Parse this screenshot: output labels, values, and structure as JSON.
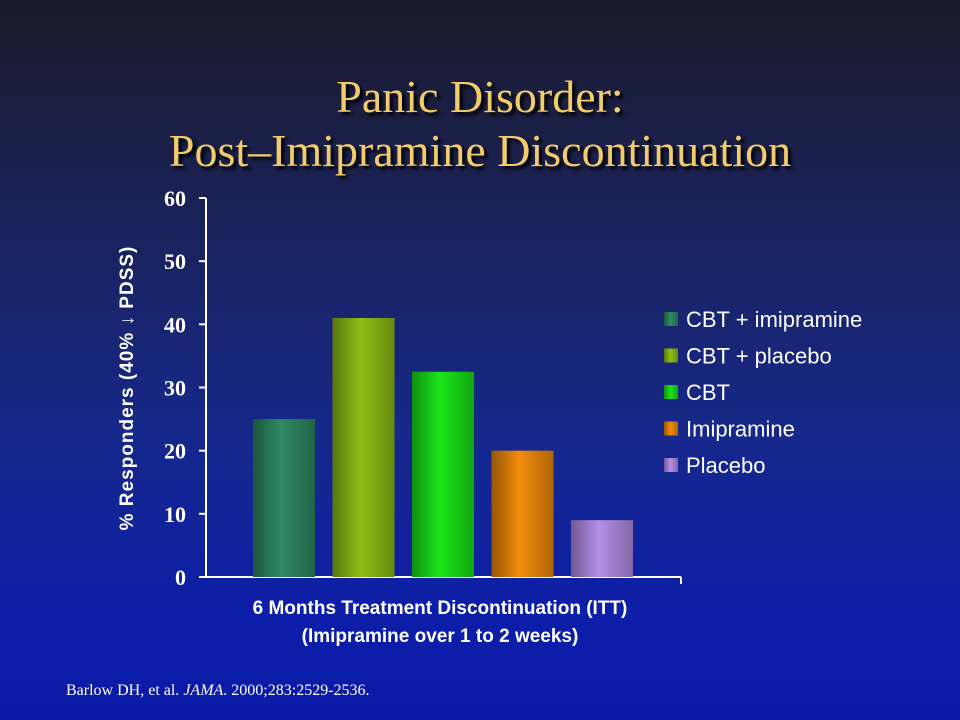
{
  "title": {
    "line1": "Panic Disorder:",
    "line2": "Post–Imipramine Discontinuation"
  },
  "citation": {
    "authors": "Barlow DH, et al. ",
    "journal": "JAMA",
    "details": ". 2000;283:2529-2536."
  },
  "chart_data": {
    "type": "bar",
    "categories": [
      "6 Months Treatment Discontinuation (ITT)"
    ],
    "xlabel": [
      "6 Months Treatment Discontinuation (ITT)",
      "(Imipramine over 1 to 2 weeks)"
    ],
    "ylabel": "% Responders (40% ↓ PDSS)",
    "ylim": [
      0,
      60
    ],
    "yticks": [
      0,
      10,
      20,
      30,
      40,
      50,
      60
    ],
    "grid": false,
    "legend": "right",
    "series": [
      {
        "name": "CBT + imipramine",
        "values": [
          25
        ],
        "color": "#2e8b63"
      },
      {
        "name": "CBT + placebo",
        "values": [
          41
        ],
        "color": "#8fbf14"
      },
      {
        "name": "CBT",
        "values": [
          32.5
        ],
        "color": "#19e619"
      },
      {
        "name": "Imipramine",
        "values": [
          20
        ],
        "color": "#f28c0a"
      },
      {
        "name": "Placebo",
        "values": [
          9
        ],
        "color": "#b58ee8"
      }
    ]
  }
}
